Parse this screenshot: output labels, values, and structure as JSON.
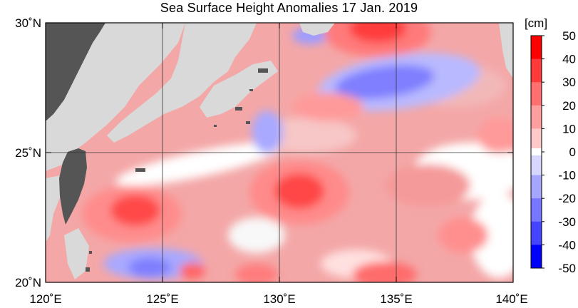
{
  "title": "Sea Surface Height Anomalies  17 Jan. 2019",
  "map": {
    "lon_range": [
      120,
      140
    ],
    "lat_range": [
      20,
      30
    ],
    "lon_ticks": [
      "120˚E",
      "125˚E",
      "130˚E",
      "135˚E",
      "140˚E"
    ],
    "lat_ticks": [
      "20˚N",
      "25˚N",
      "30˚N"
    ],
    "grid": true,
    "land_color": "#d9d9d9",
    "ocean_base_color": "#f4a4a4"
  },
  "colorbar": {
    "unit": "[cm]",
    "labels": [
      "50",
      "40",
      "30",
      "20",
      "10",
      "0",
      "-10",
      "-20",
      "-30",
      "-40",
      "-50"
    ],
    "colors": [
      "#ff0000",
      "#ff3a3a",
      "#ff6f6f",
      "#ff9e9e",
      "#ffc8c8",
      "#ffffff",
      "#d6d6ff",
      "#a6a6ff",
      "#7676ff",
      "#4545ff",
      "#0000ff"
    ]
  }
}
